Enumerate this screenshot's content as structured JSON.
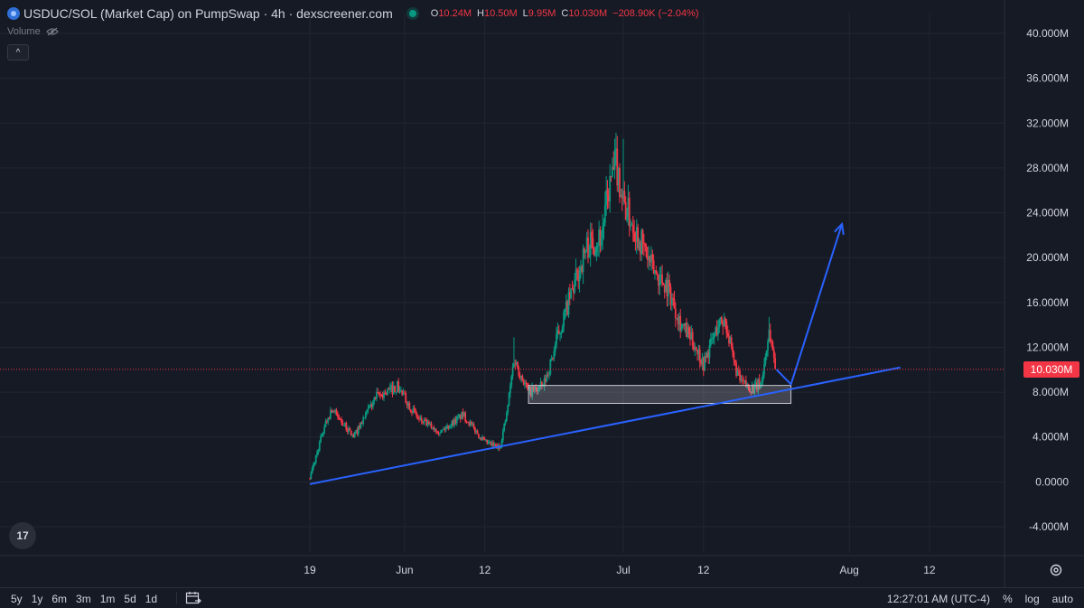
{
  "legend": {
    "title": "USDUC/SOL (Market Cap) on PumpSwap · 4h · dexscreener.com",
    "ohlc": [
      {
        "label": "O",
        "value": "10.24M"
      },
      {
        "label": "H",
        "value": "10.50M"
      },
      {
        "label": "L",
        "value": "9.95M"
      },
      {
        "label": "C",
        "value": "10.030M"
      }
    ],
    "change": "−208.90K (−2.04%)",
    "volume_label": "Volume",
    "collapse_glyph": "^"
  },
  "price_axis": {
    "ticks": [
      "40.000M",
      "36.000M",
      "32.000M",
      "28.000M",
      "24.000M",
      "20.000M",
      "16.000M",
      "12.000M",
      "8.000M",
      "4.000M",
      "0.0000",
      "-4.000M"
    ],
    "current_price_label": "10.030M"
  },
  "time_axis": {
    "ticks": [
      "19",
      "Jun",
      "12",
      "Jul",
      "12",
      "Aug",
      "12"
    ]
  },
  "bottom_bar": {
    "ranges": [
      "5y",
      "1y",
      "6m",
      "3m",
      "1m",
      "5d",
      "1d"
    ],
    "clock": "12:27:01 AM (UTC-4)",
    "percent": "%",
    "log": "log",
    "auto": "auto"
  },
  "logo_text": "17",
  "colors": {
    "up": "#089981",
    "down": "#f23645",
    "trendline": "#2962ff",
    "background": "#161a25"
  },
  "chart_data": {
    "type": "candlestick",
    "timeframe": "4h",
    "ylim": [
      -6000000,
      42000000
    ],
    "price_unit": "market cap (USD)",
    "anchors": [
      {
        "date": "2025-05-19",
        "value": 300000
      },
      {
        "date": "2025-05-21",
        "value": 5000000
      },
      {
        "date": "2025-05-22",
        "value": 6500000
      },
      {
        "date": "2025-05-25",
        "value": 4000000
      },
      {
        "date": "2025-05-28",
        "value": 7500000
      },
      {
        "date": "2025-05-31",
        "value": 8500000
      },
      {
        "date": "2025-06-03",
        "value": 5500000
      },
      {
        "date": "2025-06-06",
        "value": 4500000
      },
      {
        "date": "2025-06-09",
        "value": 6000000
      },
      {
        "date": "2025-06-12",
        "value": 3500000
      },
      {
        "date": "2025-06-14",
        "value": 3000000
      },
      {
        "date": "2025-06-15",
        "value": 6000000
      },
      {
        "date": "2025-06-16",
        "value": 11000000
      },
      {
        "date": "2025-06-18",
        "value": 8000000
      },
      {
        "date": "2025-06-20",
        "value": 8500000
      },
      {
        "date": "2025-06-21",
        "value": 10500000
      },
      {
        "date": "2025-06-22",
        "value": 13000000
      },
      {
        "date": "2025-06-24",
        "value": 17000000
      },
      {
        "date": "2025-06-26",
        "value": 21000000
      },
      {
        "date": "2025-06-28",
        "value": 22000000
      },
      {
        "date": "2025-06-29",
        "value": 26000000
      },
      {
        "date": "2025-06-30",
        "value": 28500000
      },
      {
        "date": "2025-07-01",
        "value": 25000000
      },
      {
        "date": "2025-07-03",
        "value": 22000000
      },
      {
        "date": "2025-07-05",
        "value": 19000000
      },
      {
        "date": "2025-07-07",
        "value": 17500000
      },
      {
        "date": "2025-07-09",
        "value": 14000000
      },
      {
        "date": "2025-07-11",
        "value": 12000000
      },
      {
        "date": "2025-07-12",
        "value": 10500000
      },
      {
        "date": "2025-07-14",
        "value": 14000000
      },
      {
        "date": "2025-07-15",
        "value": 14500000
      },
      {
        "date": "2025-07-16",
        "value": 11000000
      },
      {
        "date": "2025-07-17",
        "value": 9000000
      },
      {
        "date": "2025-07-18",
        "value": 8500000
      },
      {
        "date": "2025-07-19",
        "value": 8300000
      },
      {
        "date": "2025-07-20",
        "value": 9000000
      },
      {
        "date": "2025-07-21",
        "value": 13500000
      },
      {
        "date": "2025-07-22",
        "value": 10030000
      }
    ],
    "wick_extremes": [
      {
        "date": "2025-07-01",
        "high": 30600000
      },
      {
        "date": "2025-06-16",
        "high": 12900000
      },
      {
        "date": "2025-07-21",
        "high": 14700000
      }
    ],
    "annotations": {
      "trendline": {
        "from": {
          "date": "2025-05-19",
          "value": -200000
        },
        "to": {
          "date": "2025-08-08",
          "value": 10200000
        }
      },
      "support_zone": {
        "from_date": "2025-06-18",
        "to_date": "2025-07-24",
        "top": 8600000,
        "bottom": 7000000
      },
      "projection": [
        {
          "date": "2025-07-22",
          "value": 10030000
        },
        {
          "date": "2025-07-24",
          "value": 8700000
        },
        {
          "date": "2025-07-31",
          "value": 23000000
        }
      ]
    }
  }
}
